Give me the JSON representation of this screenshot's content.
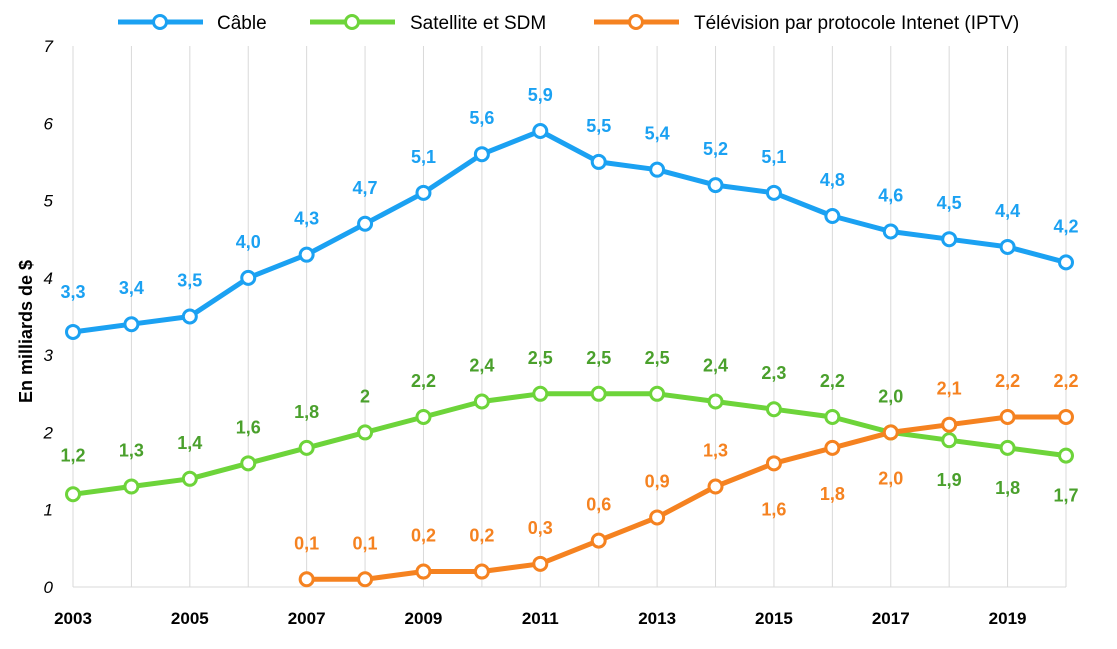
{
  "chart_data": {
    "type": "line",
    "ylabel": "En milliards de $",
    "ylim": [
      0,
      7
    ],
    "yticks": [
      "0",
      "1",
      "2",
      "3",
      "4",
      "5",
      "6",
      "7"
    ],
    "x": [
      2003,
      2004,
      2005,
      2006,
      2007,
      2008,
      2009,
      2010,
      2011,
      2012,
      2013,
      2014,
      2015,
      2016,
      2017,
      2018,
      2019,
      2020
    ],
    "xtick_labels": [
      "2003",
      "2005",
      "2007",
      "2009",
      "2011",
      "2013",
      "2015",
      "2017",
      "2019"
    ],
    "grid": "vertical",
    "legend_position": "top",
    "series": [
      {
        "name": "Câble",
        "color": "#1ba1f2",
        "values": [
          3.3,
          3.4,
          3.5,
          4.0,
          4.3,
          4.7,
          5.1,
          5.6,
          5.9,
          5.5,
          5.4,
          5.2,
          5.1,
          4.8,
          4.6,
          4.5,
          4.4,
          4.2
        ],
        "labels": [
          "3,3",
          "3,4",
          "3,5",
          "4,0",
          "4,3",
          "4,7",
          "5,1",
          "5,6",
          "5,9",
          "5,5",
          "5,4",
          "5,2",
          "5,1",
          "4,8",
          "4,6",
          "4,5",
          "4,4",
          "4,2"
        ]
      },
      {
        "name": "Satellite et SDM",
        "color": "#6dd43a",
        "label_color": "#4aa02c",
        "values": [
          1.2,
          1.3,
          1.4,
          1.6,
          1.8,
          2.0,
          2.2,
          2.4,
          2.5,
          2.5,
          2.5,
          2.4,
          2.3,
          2.2,
          2.0,
          1.9,
          1.8,
          1.7
        ],
        "labels": [
          "1,2",
          "1,3",
          "1,4",
          "1,6",
          "1,8",
          "2",
          "2,2",
          "2,4",
          "2,5",
          "2,5",
          "2,5",
          "2,4",
          "2,3",
          "2,2",
          "2,0",
          "1,9",
          "1,8",
          "1,7"
        ]
      },
      {
        "name": "Télévision par protocole Intenet (IPTV)",
        "color": "#f58220",
        "values": [
          null,
          null,
          null,
          null,
          0.1,
          0.1,
          0.2,
          0.2,
          0.3,
          0.6,
          0.9,
          1.3,
          1.6,
          1.8,
          2.0,
          2.1,
          2.2,
          2.2
        ],
        "labels": [
          null,
          null,
          null,
          null,
          "0,1",
          "0,1",
          "0,2",
          "0,2",
          "0,3",
          "0,6",
          "0,9",
          "1,3",
          "1,6",
          "1,8",
          "2,0",
          "2,1",
          "2,2",
          "2,2"
        ]
      }
    ]
  }
}
